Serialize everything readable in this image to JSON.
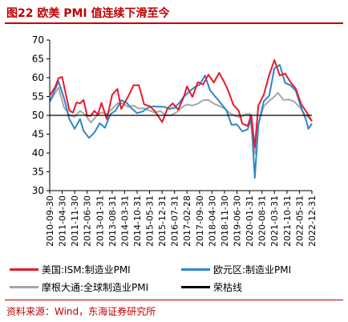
{
  "title": "图22 欧美 PMI 值连续下滑至今",
  "source": "资料来源：Wind，东海证券研究所",
  "chart_data": {
    "type": "line",
    "title": "图22 欧美 PMI 值连续下滑至今",
    "xlabel": "",
    "ylabel": "",
    "ylim": [
      30,
      70
    ],
    "yticks": [
      "30",
      "35",
      "40",
      "45",
      "50",
      "55",
      "60",
      "65",
      "70"
    ],
    "xtick_labels": [
      "2010-09-30",
      "2011-04-30",
      "2011-11-30",
      "2012-06-30",
      "2013-01-31",
      "2013-08-31",
      "2014-03-31",
      "2014-10-31",
      "2015-05-31",
      "2015-12-31",
      "2016-07-31",
      "2017-02-28",
      "2017-09-30",
      "2018-04-30",
      "2018-11-30",
      "2019-06-30",
      "2020-01-31",
      "2020-08-31",
      "2021-03-31",
      "2021-10-31",
      "2022-05-31",
      "2022-12-31"
    ],
    "grid": false,
    "legend_position": "bottom",
    "series": [
      {
        "name": "美国:ISM:制造业PMI",
        "color": "#e8192c",
        "points": [
          [
            "2010-09-30",
            55.3
          ],
          [
            "2010-12-31",
            57.5
          ],
          [
            "2011-02-28",
            59.9
          ],
          [
            "2011-04-30",
            60.2
          ],
          [
            "2011-06-30",
            55.8
          ],
          [
            "2011-08-31",
            51.3
          ],
          [
            "2011-10-31",
            50.7
          ],
          [
            "2011-12-31",
            53.4
          ],
          [
            "2012-02-29",
            53.2
          ],
          [
            "2012-04-30",
            54.1
          ],
          [
            "2012-06-30",
            49.9
          ],
          [
            "2012-08-31",
            49.9
          ],
          [
            "2012-10-31",
            51.2
          ],
          [
            "2012-12-31",
            50.2
          ],
          [
            "2013-02-28",
            53.3
          ],
          [
            "2013-05-31",
            49.0
          ],
          [
            "2013-08-31",
            55.5
          ],
          [
            "2013-11-30",
            57.0
          ],
          [
            "2014-01-31",
            51.7
          ],
          [
            "2014-05-31",
            55.0
          ],
          [
            "2014-08-31",
            58.0
          ],
          [
            "2014-11-30",
            58.0
          ],
          [
            "2015-02-28",
            52.9
          ],
          [
            "2015-05-31",
            52.5
          ],
          [
            "2015-08-31",
            51.1
          ],
          [
            "2015-12-31",
            48.2
          ],
          [
            "2016-03-31",
            51.8
          ],
          [
            "2016-06-30",
            53.2
          ],
          [
            "2016-09-30",
            51.5
          ],
          [
            "2016-12-31",
            54.7
          ],
          [
            "2017-02-28",
            57.7
          ],
          [
            "2017-05-31",
            54.9
          ],
          [
            "2017-08-31",
            58.8
          ],
          [
            "2017-11-30",
            58.2
          ],
          [
            "2018-02-28",
            60.8
          ],
          [
            "2018-05-31",
            58.7
          ],
          [
            "2018-08-31",
            61.3
          ],
          [
            "2018-11-30",
            58.7
          ],
          [
            "2019-01-31",
            56.6
          ],
          [
            "2019-04-30",
            52.8
          ],
          [
            "2019-07-31",
            51.2
          ],
          [
            "2019-09-30",
            47.8
          ],
          [
            "2019-12-31",
            47.2
          ],
          [
            "2020-02-29",
            50.1
          ],
          [
            "2020-04-30",
            41.5
          ],
          [
            "2020-06-30",
            52.6
          ],
          [
            "2020-09-30",
            55.4
          ],
          [
            "2020-12-31",
            60.7
          ],
          [
            "2021-03-31",
            64.7
          ],
          [
            "2021-06-30",
            60.6
          ],
          [
            "2021-09-30",
            61.1
          ],
          [
            "2021-12-31",
            58.8
          ],
          [
            "2022-03-31",
            57.1
          ],
          [
            "2022-06-30",
            53.0
          ],
          [
            "2022-09-30",
            50.9
          ],
          [
            "2022-12-31",
            48.4
          ]
        ]
      },
      {
        "name": "欧元区:制造业PMI",
        "color": "#2e86c9",
        "points": [
          [
            "2010-09-30",
            53.7
          ],
          [
            "2011-02-28",
            59.0
          ],
          [
            "2011-05-31",
            54.6
          ],
          [
            "2011-08-31",
            49.0
          ],
          [
            "2011-11-30",
            46.4
          ],
          [
            "2012-02-29",
            49.0
          ],
          [
            "2012-04-30",
            45.9
          ],
          [
            "2012-07-31",
            44.0
          ],
          [
            "2012-10-31",
            45.4
          ],
          [
            "2013-01-31",
            47.9
          ],
          [
            "2013-04-30",
            46.7
          ],
          [
            "2013-07-31",
            50.3
          ],
          [
            "2013-10-31",
            51.3
          ],
          [
            "2014-01-31",
            54.0
          ],
          [
            "2014-04-30",
            53.4
          ],
          [
            "2014-07-31",
            51.8
          ],
          [
            "2014-10-31",
            50.6
          ],
          [
            "2015-01-31",
            51.0
          ],
          [
            "2015-04-30",
            52.0
          ],
          [
            "2015-07-31",
            52.4
          ],
          [
            "2015-10-31",
            52.3
          ],
          [
            "2016-01-31",
            52.3
          ],
          [
            "2016-04-30",
            51.7
          ],
          [
            "2016-07-31",
            52.0
          ],
          [
            "2016-10-31",
            53.5
          ],
          [
            "2016-12-31",
            54.9
          ],
          [
            "2017-03-31",
            56.2
          ],
          [
            "2017-06-30",
            57.4
          ],
          [
            "2017-09-30",
            58.1
          ],
          [
            "2017-12-31",
            60.6
          ],
          [
            "2018-03-31",
            56.6
          ],
          [
            "2018-06-30",
            54.9
          ],
          [
            "2018-09-30",
            53.2
          ],
          [
            "2018-12-31",
            51.4
          ],
          [
            "2019-03-31",
            47.5
          ],
          [
            "2019-06-30",
            47.6
          ],
          [
            "2019-09-30",
            45.7
          ],
          [
            "2019-12-31",
            46.3
          ],
          [
            "2020-02-29",
            49.2
          ],
          [
            "2020-04-30",
            33.4
          ],
          [
            "2020-06-30",
            47.4
          ],
          [
            "2020-09-30",
            53.7
          ],
          [
            "2020-12-31",
            55.2
          ],
          [
            "2021-03-31",
            62.5
          ],
          [
            "2021-06-30",
            63.4
          ],
          [
            "2021-09-30",
            58.6
          ],
          [
            "2021-12-31",
            58.0
          ],
          [
            "2022-03-31",
            56.5
          ],
          [
            "2022-06-30",
            52.1
          ],
          [
            "2022-09-30",
            48.4
          ],
          [
            "2022-10-31",
            46.4
          ],
          [
            "2022-12-31",
            47.8
          ]
        ]
      },
      {
        "name": "摩根大通:全球制造业PMI",
        "color": "#a6a6a6",
        "points": [
          [
            "2010-09-30",
            53.5
          ],
          [
            "2011-02-28",
            57.4
          ],
          [
            "2011-05-31",
            52.1
          ],
          [
            "2011-08-31",
            50.1
          ],
          [
            "2011-11-30",
            49.6
          ],
          [
            "2012-02-29",
            51.2
          ],
          [
            "2012-05-31",
            50.1
          ],
          [
            "2012-08-31",
            48.1
          ],
          [
            "2012-11-30",
            49.7
          ],
          [
            "2013-02-28",
            50.8
          ],
          [
            "2013-05-31",
            50.4
          ],
          [
            "2013-08-31",
            51.7
          ],
          [
            "2013-11-30",
            53.2
          ],
          [
            "2014-02-28",
            53.2
          ],
          [
            "2014-05-31",
            52.2
          ],
          [
            "2014-08-31",
            52.6
          ],
          [
            "2014-11-30",
            51.8
          ],
          [
            "2015-02-28",
            51.9
          ],
          [
            "2015-05-31",
            51.3
          ],
          [
            "2015-08-31",
            50.7
          ],
          [
            "2015-11-30",
            51.2
          ],
          [
            "2016-02-29",
            50.0
          ],
          [
            "2016-05-31",
            50.0
          ],
          [
            "2016-08-31",
            50.8
          ],
          [
            "2016-11-30",
            52.1
          ],
          [
            "2017-02-28",
            52.9
          ],
          [
            "2017-05-31",
            52.6
          ],
          [
            "2017-08-31",
            53.1
          ],
          [
            "2017-11-30",
            54.0
          ],
          [
            "2018-02-28",
            54.1
          ],
          [
            "2018-05-31",
            53.1
          ],
          [
            "2018-08-31",
            52.5
          ],
          [
            "2018-11-30",
            51.8
          ],
          [
            "2019-02-28",
            50.6
          ],
          [
            "2019-05-31",
            49.8
          ],
          [
            "2019-08-31",
            49.5
          ],
          [
            "2019-11-30",
            50.3
          ],
          [
            "2020-01-31",
            50.4
          ],
          [
            "2020-02-29",
            47.2
          ],
          [
            "2020-04-30",
            39.8
          ],
          [
            "2020-06-30",
            47.9
          ],
          [
            "2020-09-30",
            52.4
          ],
          [
            "2020-12-31",
            53.8
          ],
          [
            "2021-03-31",
            55.0
          ],
          [
            "2021-05-31",
            56.0
          ],
          [
            "2021-08-31",
            54.1
          ],
          [
            "2021-11-30",
            54.2
          ],
          [
            "2022-02-28",
            53.7
          ],
          [
            "2022-05-31",
            52.3
          ],
          [
            "2022-08-31",
            50.3
          ],
          [
            "2022-10-31",
            49.4
          ],
          [
            "2022-12-31",
            48.6
          ]
        ]
      },
      {
        "name": "荣枯线",
        "color": "#000000",
        "points": [
          [
            "2010-09-30",
            50
          ],
          [
            "2022-12-31",
            50
          ]
        ]
      }
    ]
  }
}
